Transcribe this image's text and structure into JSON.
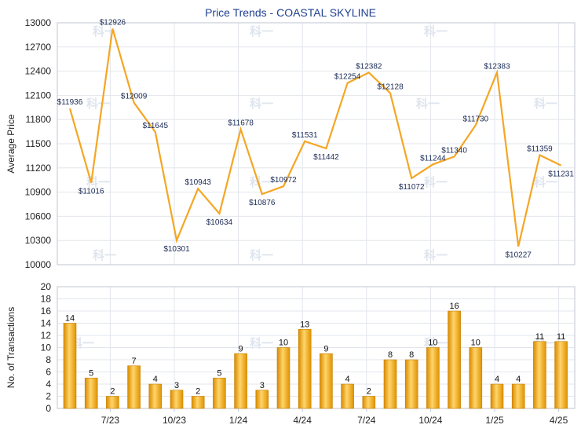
{
  "chart_data": [
    {
      "type": "line",
      "title": "Price Trends - COASTAL SKYLINE",
      "ylabel": "Average Price",
      "ylim": [
        10000,
        13000
      ],
      "yticks": [
        10000,
        10300,
        10600,
        10900,
        11200,
        11500,
        11800,
        12100,
        12400,
        12700,
        13000
      ],
      "xtick_labels": [
        "7/23",
        "10/23",
        "1/24",
        "4/24",
        "7/24",
        "10/24",
        "1/25",
        "4/25"
      ],
      "grid": true,
      "color": "#f5a623",
      "series": [
        {
          "values": [
            11936,
            11016,
            12926,
            12009,
            11645,
            10301,
            10943,
            10634,
            11678,
            10876,
            10972,
            11531,
            11442,
            12254,
            12382,
            12128,
            11072,
            11244,
            11340,
            11730,
            12383,
            10227,
            11359,
            11231
          ],
          "labels": [
            "$11936",
            "$11016",
            "$12926",
            "$12009",
            "$11645",
            "$10301",
            "$10943",
            "$10634",
            "$11678",
            "$10876",
            "$10972",
            "$11531",
            "$11442",
            "$12254",
            "$12382",
            "$12128",
            "$11072",
            "$11244",
            "$11340",
            "$11730",
            "$12383",
            "$10227",
            "$11359",
            "$11231"
          ]
        }
      ]
    },
    {
      "type": "bar",
      "ylabel": "No. of Transactions",
      "ylim": [
        0,
        20
      ],
      "yticks": [
        0,
        2,
        4,
        6,
        8,
        10,
        12,
        14,
        16,
        18,
        20
      ],
      "xtick_labels": [
        "7/23",
        "10/23",
        "1/24",
        "4/24",
        "7/24",
        "10/24",
        "1/25",
        "4/25"
      ],
      "grid": true,
      "color": "#f5a623",
      "values": [
        14,
        5,
        2,
        7,
        4,
        3,
        2,
        5,
        9,
        3,
        10,
        13,
        9,
        4,
        2,
        8,
        8,
        10,
        16,
        10,
        4,
        4,
        11,
        11
      ]
    }
  ],
  "watermark": "科一"
}
